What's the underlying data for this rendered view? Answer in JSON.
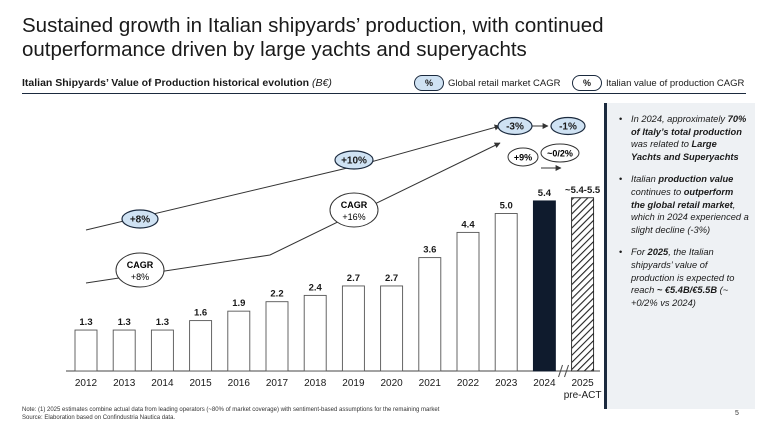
{
  "title": "Sustained growth in Italian shipyards’ production, with continued outperformance driven by large yachts and superyachts",
  "subtitle": "Italian Shipyards’ Value of Production historical evolution",
  "subtitle_unit": "(B€)",
  "legend": {
    "global": {
      "symbol": "%",
      "label": "Global retail market CAGR"
    },
    "italian": {
      "symbol": "%",
      "label": "Italian value of production CAGR"
    }
  },
  "chart_data": {
    "type": "bar",
    "categories": [
      "2012",
      "2013",
      "2014",
      "2015",
      "2016",
      "2017",
      "2018",
      "2019",
      "2020",
      "2021",
      "2022",
      "2023",
      "2024",
      "2025 pre-ACT"
    ],
    "values": [
      1.3,
      1.3,
      1.3,
      1.6,
      1.9,
      2.2,
      2.4,
      2.7,
      2.7,
      3.6,
      4.4,
      5.0,
      5.4,
      5.5
    ],
    "data_labels": [
      "1.3",
      "1.3",
      "1.3",
      "1.6",
      "1.9",
      "2.2",
      "2.4",
      "2.7",
      "2.7",
      "3.6",
      "4.4",
      "5.0",
      "5.4",
      "~5.4-5.5"
    ],
    "x_labels": [
      "2012",
      "2013",
      "2014",
      "2015",
      "2016",
      "2017",
      "2018",
      "2019",
      "2020",
      "2021",
      "2022",
      "2023",
      "2024",
      "2025"
    ],
    "x_label_extra": "pre-ACT",
    "highlight_index": 12,
    "estimate_index": 13,
    "ylim": [
      0,
      6.5
    ],
    "colors": {
      "bar": "#ffffff",
      "bar_edge": "#555555",
      "highlight": "#0f1b2d",
      "pill": "#cfe2f3",
      "arrow": "#333333"
    },
    "annotations": {
      "global_cagr": [
        "+8%",
        "+10%",
        "-3%",
        "-1%"
      ],
      "italian_cagr_1_label": "CAGR",
      "italian_cagr_1": "+8%",
      "italian_cagr_2_label": "CAGR",
      "italian_cagr_2": "+16%",
      "italian_cagr_3": "+9%",
      "italian_cagr_4": "~0/2%"
    }
  },
  "sidebar": {
    "bullets": [
      {
        "pre": "In 2024, approximately ",
        "bold": "70% of Italy’s total production",
        "mid": " was related to ",
        "bold2": "Large Yachts and Superyachts",
        "post": ""
      },
      {
        "pre": "Italian ",
        "bold": "production value",
        "mid": " continues to ",
        "bold2": "outperform the global retail market",
        "post": ", which in 2024 experienced a slight decline (-3%)"
      },
      {
        "pre": "For ",
        "bold": "2025",
        "mid": ", the Italian shipyards’ value of production is expected to reach ",
        "bold2": "~ €5.4B/€5.5B",
        "post": " (~ +0/2% vs 2024)"
      }
    ]
  },
  "footer": {
    "note": "Note: (1) 2025 estimates combine actual data from leading operators (~80% of market coverage) with sentiment-based assumptions for the remaining market",
    "source": "Source: Elaboration based on Confindustria Nautica data.",
    "page": "5"
  }
}
